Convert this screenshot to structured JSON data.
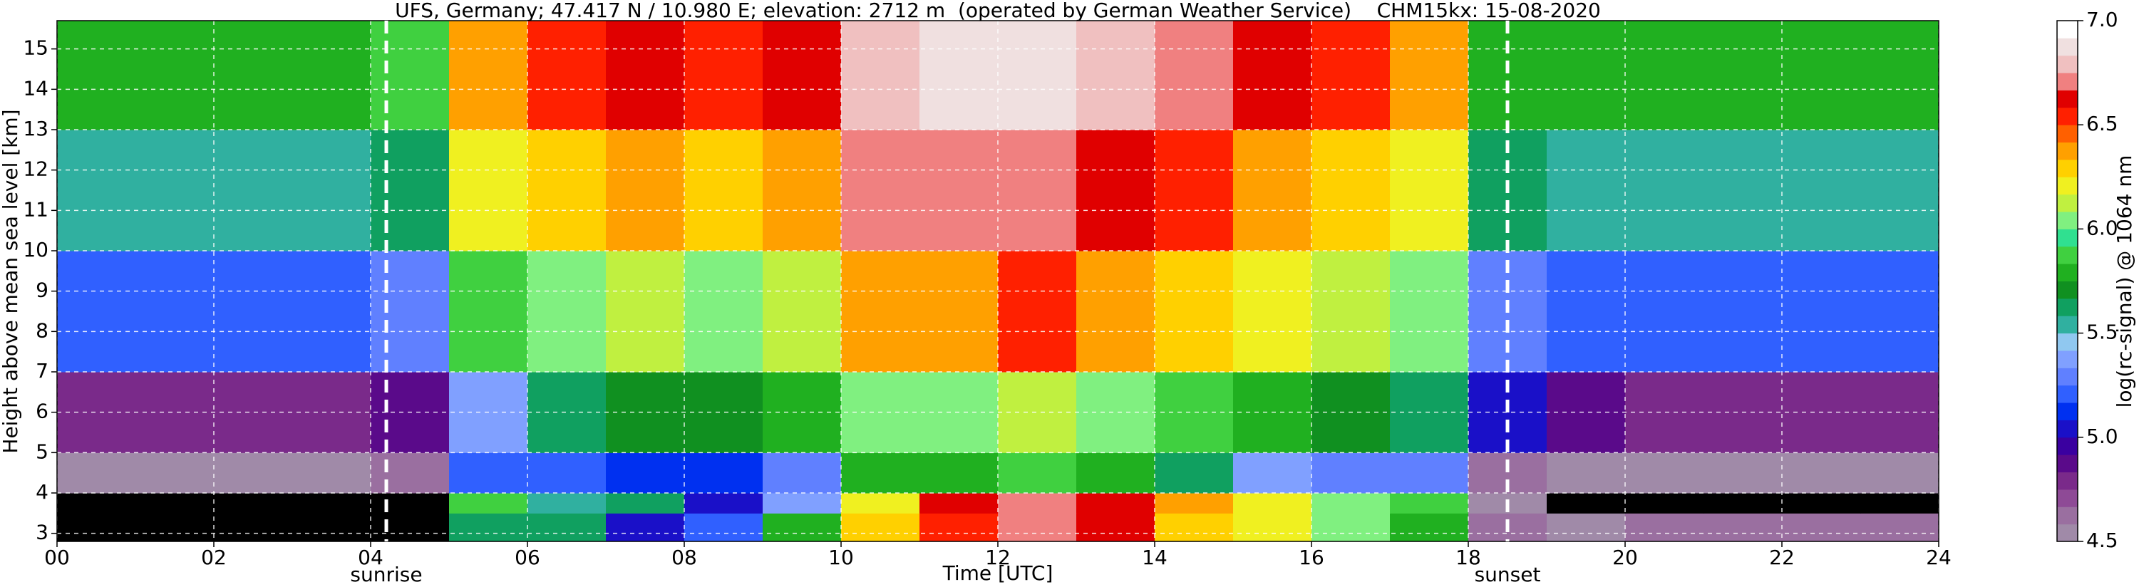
{
  "chart_data": {
    "type": "heatmap",
    "title": "UFS, Germany; 47.417 N / 10.980 E; elevation: 2712 m  (operated by German Weather Service)    CHM15kx: 15-08-2020",
    "x_label": "Time [UTC]",
    "y_label": "Height above mean sea level [km]",
    "colorbar_label": "log(rc-signal) @ 1064 nm",
    "x_bins": [
      0,
      1,
      2,
      3,
      4,
      5,
      6,
      7,
      8,
      9,
      10,
      11,
      12,
      13,
      14,
      15,
      16,
      17,
      18,
      19,
      20,
      21,
      22,
      23,
      24
    ],
    "y_bins": [
      2.8,
      3.5,
      4,
      5,
      7,
      10,
      13,
      15.7
    ],
    "values": [
      [
        4.3,
        4.3,
        4.3,
        4.3,
        4.4,
        5.6,
        5.6,
        5.0,
        5.2,
        5.8,
        6.3,
        6.5,
        6.7,
        6.6,
        6.3,
        6.2,
        6.0,
        5.8,
        4.6,
        4.5,
        4.6,
        4.6,
        4.6,
        4.6
      ],
      [
        4.3,
        4.3,
        4.3,
        4.3,
        4.4,
        5.9,
        5.5,
        5.6,
        5.0,
        5.4,
        6.2,
        6.6,
        6.7,
        6.6,
        6.4,
        6.2,
        6.0,
        5.9,
        4.5,
        4.4,
        4.4,
        4.4,
        4.4,
        4.4
      ],
      [
        4.5,
        4.5,
        4.5,
        4.5,
        4.6,
        5.2,
        5.2,
        5.1,
        5.1,
        5.3,
        5.8,
        5.8,
        5.9,
        5.8,
        5.6,
        5.4,
        5.3,
        5.3,
        4.6,
        4.5,
        4.5,
        4.5,
        4.5,
        4.5
      ],
      [
        4.8,
        4.8,
        4.8,
        4.8,
        4.9,
        5.4,
        5.6,
        5.7,
        5.7,
        5.8,
        6.0,
        6.0,
        6.1,
        6.0,
        5.9,
        5.8,
        5.7,
        5.6,
        5.0,
        4.9,
        4.8,
        4.8,
        4.8,
        4.8
      ],
      [
        5.2,
        5.2,
        5.2,
        5.2,
        5.3,
        5.9,
        6.0,
        6.1,
        6.0,
        6.1,
        6.4,
        6.4,
        6.5,
        6.4,
        6.3,
        6.2,
        6.1,
        6.0,
        5.3,
        5.2,
        5.2,
        5.2,
        5.2,
        5.2
      ],
      [
        5.5,
        5.5,
        5.5,
        5.5,
        5.6,
        6.2,
        6.3,
        6.4,
        6.3,
        6.4,
        6.7,
        6.7,
        6.7,
        6.6,
        6.5,
        6.4,
        6.3,
        6.2,
        5.6,
        5.5,
        5.5,
        5.5,
        5.5,
        5.5
      ],
      [
        5.8,
        5.8,
        5.8,
        5.8,
        5.9,
        6.4,
        6.5,
        6.6,
        6.5,
        6.6,
        6.8,
        6.9,
        6.9,
        6.8,
        6.7,
        6.6,
        6.5,
        6.4,
        5.8,
        5.8,
        5.8,
        5.8,
        5.8,
        5.8
      ]
    ],
    "xlim": [
      0,
      24
    ],
    "xticks": [
      {
        "value": 0,
        "label": "00"
      },
      {
        "value": 2,
        "label": "02"
      },
      {
        "value": 4,
        "label": "04"
      },
      {
        "value": 6,
        "label": "06"
      },
      {
        "value": 8,
        "label": "08"
      },
      {
        "value": 10,
        "label": "10"
      },
      {
        "value": 12,
        "label": "12"
      },
      {
        "value": 14,
        "label": "14"
      },
      {
        "value": 16,
        "label": "16"
      },
      {
        "value": 18,
        "label": "18"
      },
      {
        "value": 20,
        "label": "20"
      },
      {
        "value": 22,
        "label": "22"
      },
      {
        "value": 24,
        "label": "24"
      }
    ],
    "ylim": [
      2.8,
      15.7
    ],
    "yticks": [
      3,
      4,
      5,
      6,
      7,
      8,
      9,
      10,
      11,
      12,
      13,
      14,
      15
    ],
    "grid": true,
    "clim": [
      4.5,
      7.0
    ],
    "cticks": [
      4.5,
      {
        "value": 5,
        "label": "5.0"
      },
      5.5,
      {
        "value": 6,
        "label": "6.0"
      },
      6.5,
      {
        "value": 7,
        "label": "7.0"
      }
    ],
    "under_color": "#000000",
    "colormap": [
      "#a08aa8",
      "#9a6fa0",
      "#8e4a96",
      "#7a2a8a",
      "#5a0a8a",
      "#3a00a0",
      "#1a10c8",
      "#0030f0",
      "#3060ff",
      "#6080ff",
      "#80a0ff",
      "#90c8f0",
      "#30b0a0",
      "#10a060",
      "#109020",
      "#20b020",
      "#40d040",
      "#30e090",
      "#80f080",
      "#c0f040",
      "#f0f020",
      "#ffd000",
      "#ffa000",
      "#ff6000",
      "#ff2000",
      "#e00000",
      "#f08080",
      "#f0c0c0",
      "#f0e0e0",
      "#ffffff"
    ],
    "annotations": [
      {
        "x": 4.2,
        "text": "sunrise"
      },
      {
        "x": 18.5,
        "text": "sunset"
      }
    ]
  }
}
